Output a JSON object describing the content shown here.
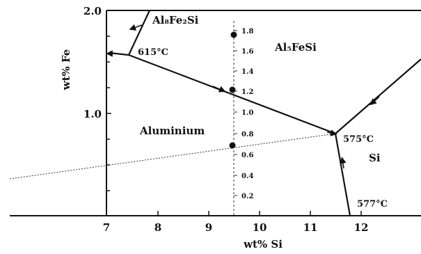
{
  "axes": {
    "x_title": "wt% Si",
    "y_title": "wt% Fe",
    "x_ticks": [
      "7",
      "8",
      "9",
      "10",
      "11",
      "12"
    ],
    "y_ticks": [
      "2.0",
      "1.0"
    ]
  },
  "scale_bar": {
    "labels": [
      "1.8",
      "1.6",
      "1.4",
      "1.2",
      "1.0",
      "0.8",
      "0.6",
      "0.4",
      "0.2"
    ]
  },
  "regions": {
    "al8fe2si": "Al₈Fe₂Si",
    "al5fesi": "Al₅FeSi",
    "aluminium": "Aluminium",
    "si": "Si"
  },
  "temperatures": {
    "t615": "615°C",
    "t575": "575°C",
    "t577": "577°C"
  }
}
